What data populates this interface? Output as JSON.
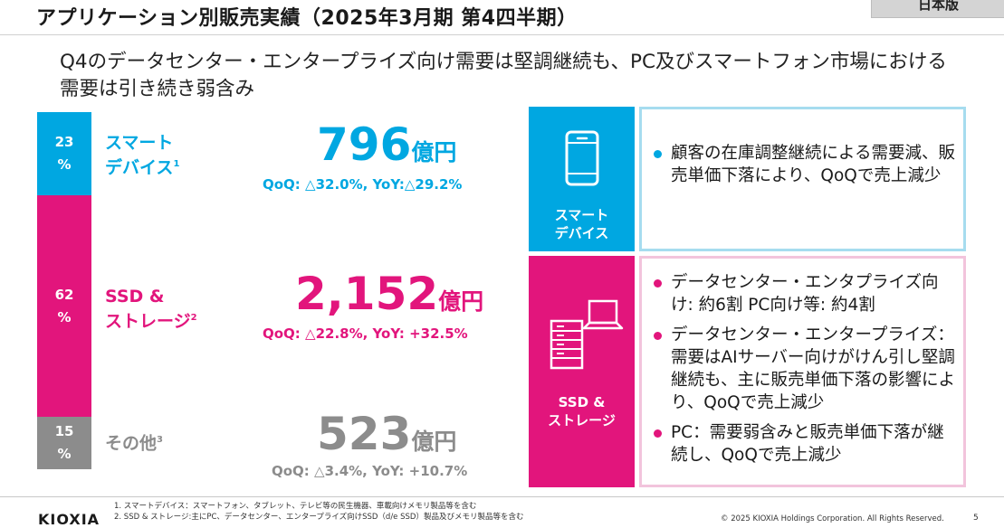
{
  "header": {
    "title": "アプリケーション別販売実績（2025年3月期 第4四半期）",
    "corner_tab": "日本版"
  },
  "headline": "Q4のデータセンター・エンタープライズ向け需要は堅調継続も、PC及びスマートフォン市場における需要は引き続き弱含み",
  "segments": [
    {
      "share": "23\n%",
      "label_line1": "スマート",
      "label_line2": "デバイス",
      "footnote_mark": "1",
      "amount": "796",
      "unit": "億円",
      "change": "QoQ: △32.0%, YoY:△29.2%",
      "color": "#00a7e1"
    },
    {
      "share": "62\n%",
      "label_line1": "SSD &",
      "label_line2": "ストレージ",
      "footnote_mark": "2",
      "amount": "2,152",
      "unit": "億円",
      "change": "QoQ: △22.8%, YoY: +32.5%",
      "color": "#e2157c"
    },
    {
      "share": "15\n%",
      "label_line1": "その他",
      "footnote_mark": "3",
      "amount": "523",
      "unit": "億円",
      "change": "QoQ: △3.4%, YoY: +10.7%",
      "color": "#8c8c8c"
    }
  ],
  "panels": {
    "smart": {
      "tile_label": "スマート\nデバイス",
      "icon": "smartphone-icon",
      "bullets": [
        "顧客の在庫調整継続による需要減、販売単価下落により、QoQで売上減少"
      ],
      "accent": "#00a7e1",
      "border": "#a6dcef"
    },
    "ssd": {
      "tile_label": "SSD &\nストレージ",
      "icon": "server-laptop-icon",
      "bullets": [
        "データセンター・エンタプライズ向け: 約6割 PC向け等: 約4割",
        "データセンター・エンタープライズ：需要はAIサーバー向けがけん引し堅調継続も、主に販売単価下落の影響により、QoQで売上減少",
        "PC：需要弱含みと販売単価下落が継続し、QoQで売上減少"
      ],
      "accent": "#e2157c",
      "border": "#f2c4dc"
    }
  },
  "footer": {
    "logo": "KIOXIA",
    "footnotes": [
      "1. スマートデバイス：スマートフォン、タブレット、テレビ等の民生機器、車載向けメモリ製品等を含む",
      "2. SSD & ストレージ:主にPC、データセンター、エンタープライズ向けSSD（d/e SSD）製品及びメモリ製品等を含む"
    ],
    "copyright": "© 2025 KIOXIA Holdings Corporation. All Rights Reserved.",
    "page": "5"
  }
}
